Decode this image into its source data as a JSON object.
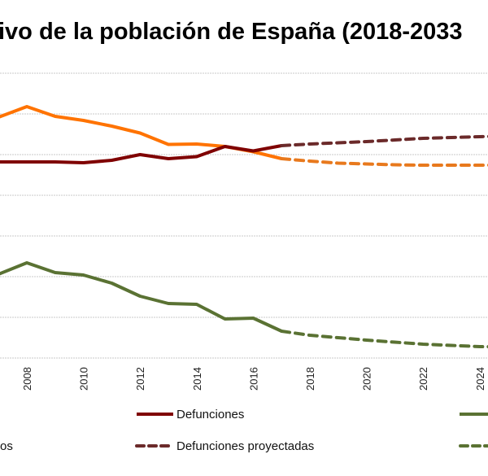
{
  "chart_data": {
    "type": "line",
    "title": "ivo de la población de España (2018-2033",
    "xlabel": "",
    "ylabel": "",
    "grid": true,
    "legend_placement": "bottom",
    "x_ticks": [
      "2008",
      "2010",
      "2012",
      "2014",
      "2016",
      "2018",
      "2020",
      "2022",
      "2024"
    ],
    "ylim": [
      -100,
      600
    ],
    "y_gridlines": [
      -100,
      0,
      100,
      200,
      300,
      400,
      500,
      600
    ],
    "series": [
      {
        "key": "births",
        "name": "",
        "color": "#ff7300",
        "dash": false,
        "x": [
          2007,
          2008,
          2009,
          2010,
          2011,
          2012,
          2013,
          2014,
          2015,
          2016,
          2017
        ],
        "values": [
          492,
          518,
          494,
          484,
          470,
          453,
          425,
          426,
          420,
          407,
          390
        ]
      },
      {
        "key": "births_proj",
        "name": "",
        "color": "#e8791d",
        "dash": true,
        "x": [
          2017,
          2018,
          2019,
          2020,
          2021,
          2022,
          2023,
          2024,
          2025
        ],
        "values": [
          390,
          384,
          379,
          377,
          375,
          374,
          374,
          374,
          374
        ]
      },
      {
        "key": "deaths",
        "name": "Defunciones",
        "color": "#7f0000",
        "dash": false,
        "x": [
          2007,
          2008,
          2009,
          2010,
          2011,
          2012,
          2013,
          2014,
          2015,
          2016,
          2017
        ],
        "values": [
          382,
          382,
          382,
          380,
          386,
          400,
          390,
          395,
          420,
          409,
          422
        ]
      },
      {
        "key": "deaths_proj",
        "name": "Defunciones proyectadas",
        "color": "#6b2a2a",
        "dash": true,
        "x": [
          2017,
          2018,
          2019,
          2020,
          2021,
          2022,
          2023,
          2024,
          2025
        ],
        "values": [
          422,
          426,
          429,
          432,
          436,
          440,
          442,
          444,
          446
        ]
      },
      {
        "key": "growth",
        "name": "",
        "color": "#5a7233",
        "dash": false,
        "x": [
          2007,
          2008,
          2009,
          2010,
          2011,
          2012,
          2013,
          2014,
          2015,
          2016,
          2017
        ],
        "values": [
          106,
          134,
          110,
          104,
          84,
          52,
          34,
          32,
          -4,
          -2,
          -34
        ]
      },
      {
        "key": "growth_proj",
        "name": "",
        "color": "#5a7233",
        "dash": true,
        "x": [
          2017,
          2018,
          2019,
          2020,
          2021,
          2022,
          2023,
          2024,
          2025
        ],
        "values": [
          -34,
          -44,
          -50,
          -56,
          -61,
          -66,
          -69,
          -72,
          -73
        ]
      }
    ],
    "legend": {
      "births_partial": "os",
      "deaths": "Defunciones",
      "deaths_proj": "Defunciones proyectadas"
    }
  }
}
